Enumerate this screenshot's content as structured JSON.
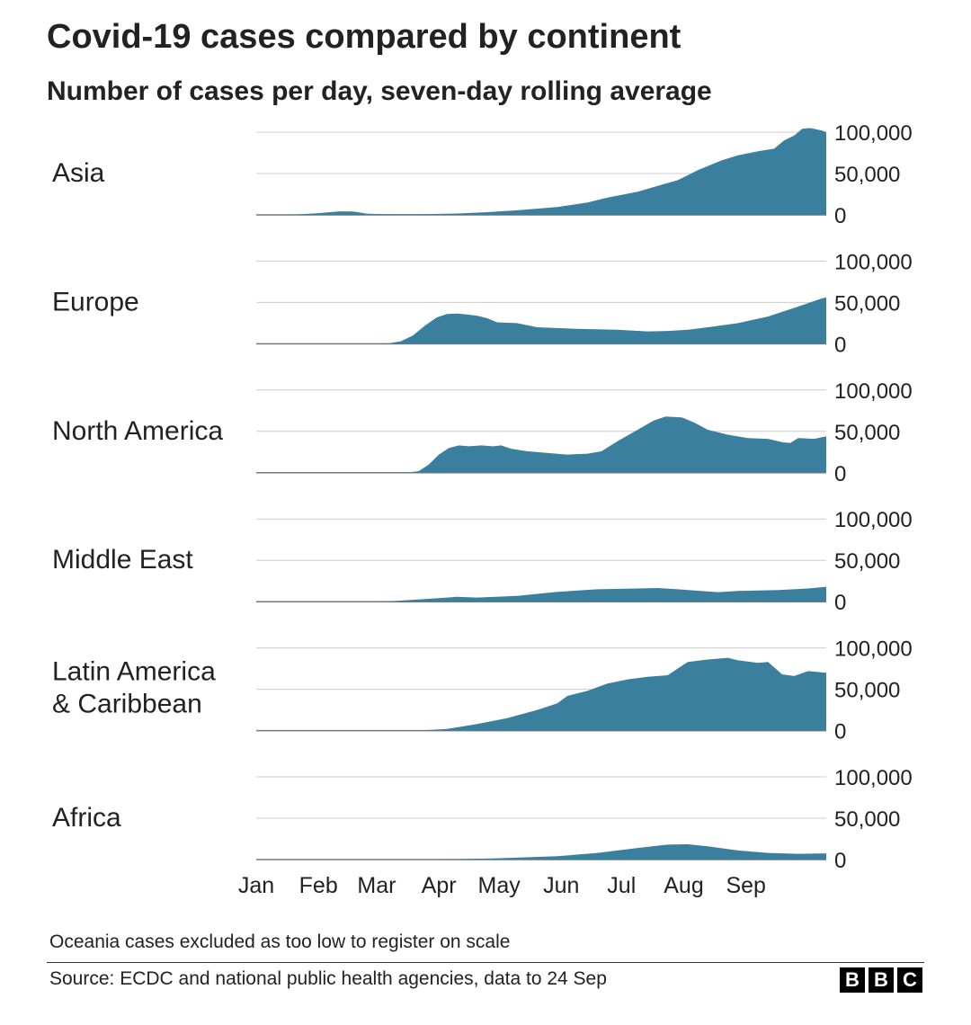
{
  "chart_data": {
    "type": "area",
    "title": "Covid-19 cases compared by continent",
    "subtitle": "Number of cases per day, seven-day rolling average",
    "x_ticks": [
      "Jan",
      "Feb",
      "Mar",
      "Apr",
      "May",
      "Jun",
      "Jul",
      "Aug",
      "Sep"
    ],
    "y_ticks": [
      "0",
      "50,000",
      "100,000"
    ],
    "ylim": [
      0,
      100000
    ],
    "grid": true,
    "fill_color": "#3b7f9e",
    "x_unit": "day of 2020 (0 = 1 Jan)",
    "panels": [
      {
        "name": "Asia",
        "label_lines": [
          "Asia"
        ],
        "points": [
          [
            0,
            0
          ],
          [
            20,
            500
          ],
          [
            30,
            1800
          ],
          [
            38,
            3600
          ],
          [
            42,
            4200
          ],
          [
            48,
            4000
          ],
          [
            50,
            3500
          ],
          [
            55,
            1500
          ],
          [
            62,
            1000
          ],
          [
            75,
            800
          ],
          [
            85,
            1000
          ],
          [
            100,
            1600
          ],
          [
            115,
            3300
          ],
          [
            130,
            5500
          ],
          [
            150,
            9500
          ],
          [
            165,
            15000
          ],
          [
            175,
            21000
          ],
          [
            190,
            28000
          ],
          [
            200,
            35000
          ],
          [
            210,
            42000
          ],
          [
            220,
            54000
          ],
          [
            232,
            66000
          ],
          [
            240,
            72000
          ],
          [
            250,
            77000
          ],
          [
            258,
            80000
          ],
          [
            263,
            90000
          ],
          [
            268,
            96000
          ],
          [
            272,
            104000
          ],
          [
            276,
            105000
          ],
          [
            282,
            102000
          ],
          [
            284,
            100000
          ]
        ]
      },
      {
        "name": "Europe",
        "label_lines": [
          "Europe"
        ],
        "points": [
          [
            0,
            0
          ],
          [
            60,
            0
          ],
          [
            66,
            500
          ],
          [
            72,
            3000
          ],
          [
            78,
            10000
          ],
          [
            84,
            22000
          ],
          [
            90,
            32000
          ],
          [
            95,
            36000
          ],
          [
            100,
            36500
          ],
          [
            105,
            35500
          ],
          [
            110,
            34000
          ],
          [
            115,
            31000
          ],
          [
            120,
            26000
          ],
          [
            130,
            25000
          ],
          [
            140,
            20000
          ],
          [
            160,
            18000
          ],
          [
            180,
            17000
          ],
          [
            195,
            15000
          ],
          [
            205,
            15500
          ],
          [
            215,
            17000
          ],
          [
            225,
            20000
          ],
          [
            240,
            25000
          ],
          [
            255,
            33000
          ],
          [
            270,
            45000
          ],
          [
            282,
            55000
          ],
          [
            284,
            56000
          ]
        ]
      },
      {
        "name": "North America",
        "label_lines": [
          "North America"
        ],
        "points": [
          [
            0,
            0
          ],
          [
            75,
            0
          ],
          [
            81,
            2000
          ],
          [
            86,
            10000
          ],
          [
            91,
            22000
          ],
          [
            96,
            30000
          ],
          [
            101,
            33000
          ],
          [
            106,
            32000
          ],
          [
            112,
            33000
          ],
          [
            118,
            32000
          ],
          [
            122,
            33000
          ],
          [
            127,
            29000
          ],
          [
            135,
            26000
          ],
          [
            145,
            24000
          ],
          [
            155,
            22000
          ],
          [
            165,
            23000
          ],
          [
            172,
            26000
          ],
          [
            180,
            38000
          ],
          [
            190,
            52000
          ],
          [
            198,
            63000
          ],
          [
            204,
            68000
          ],
          [
            212,
            67000
          ],
          [
            218,
            61000
          ],
          [
            225,
            52000
          ],
          [
            235,
            46000
          ],
          [
            245,
            42000
          ],
          [
            255,
            41000
          ],
          [
            262,
            37000
          ],
          [
            266,
            36000
          ],
          [
            270,
            42000
          ],
          [
            278,
            41000
          ],
          [
            284,
            44000
          ]
        ]
      },
      {
        "name": "Middle East",
        "label_lines": [
          "Middle East"
        ],
        "points": [
          [
            0,
            0
          ],
          [
            60,
            0
          ],
          [
            70,
            1000
          ],
          [
            80,
            2500
          ],
          [
            95,
            5000
          ],
          [
            100,
            6000
          ],
          [
            110,
            5000
          ],
          [
            130,
            7000
          ],
          [
            150,
            12000
          ],
          [
            170,
            15000
          ],
          [
            190,
            16000
          ],
          [
            200,
            16500
          ],
          [
            210,
            15000
          ],
          [
            230,
            11500
          ],
          [
            240,
            13000
          ],
          [
            260,
            14000
          ],
          [
            275,
            16000
          ],
          [
            284,
            18000
          ]
        ]
      },
      {
        "name": "Latin America & Caribbean",
        "label_lines": [
          "Latin America",
          "& Caribbean"
        ],
        "points": [
          [
            0,
            0
          ],
          [
            80,
            0
          ],
          [
            95,
            2000
          ],
          [
            110,
            8000
          ],
          [
            125,
            15000
          ],
          [
            140,
            25000
          ],
          [
            150,
            33000
          ],
          [
            155,
            42000
          ],
          [
            165,
            48000
          ],
          [
            175,
            57000
          ],
          [
            185,
            62000
          ],
          [
            195,
            65000
          ],
          [
            205,
            67000
          ],
          [
            215,
            83000
          ],
          [
            225,
            86000
          ],
          [
            235,
            88000
          ],
          [
            240,
            85000
          ],
          [
            250,
            82000
          ],
          [
            255,
            83000
          ],
          [
            262,
            68000
          ],
          [
            268,
            66000
          ],
          [
            275,
            72000
          ],
          [
            284,
            70000
          ]
        ]
      },
      {
        "name": "Africa",
        "label_lines": [
          "Africa"
        ],
        "points": [
          [
            0,
            0
          ],
          [
            90,
            0
          ],
          [
            120,
            1500
          ],
          [
            150,
            4000
          ],
          [
            170,
            8000
          ],
          [
            190,
            14000
          ],
          [
            205,
            18000
          ],
          [
            215,
            18500
          ],
          [
            225,
            16000
          ],
          [
            240,
            11000
          ],
          [
            255,
            8000
          ],
          [
            270,
            7000
          ],
          [
            284,
            7500
          ]
        ]
      }
    ]
  },
  "footnote": "Oceania cases excluded as too low to register on scale",
  "source": "Source: ECDC and national public health agencies, data to 24 Sep",
  "logo": {
    "letters": [
      "B",
      "B",
      "C"
    ]
  }
}
